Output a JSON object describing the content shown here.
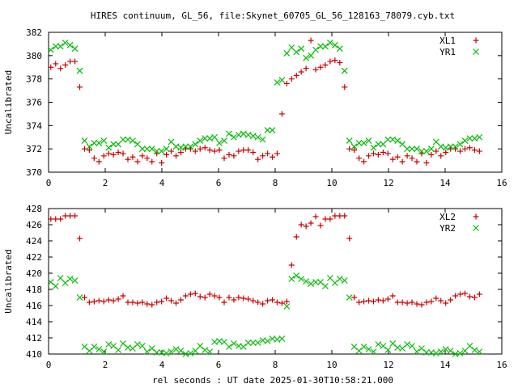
{
  "page_title": "HIRES continuum, GL_56, file:Skynet_60705_GL_56_128163_78079.cyb.txt",
  "xlabel": "rel seconds : UT date 2025-01-30T10:58:21.000",
  "colors": {
    "plus_series": "#cc0000",
    "x_series": "#00bb00",
    "axis": "#000000"
  },
  "chart_data": [
    {
      "type": "scatter",
      "ylabel": "Uncalibrated",
      "xlim": [
        0,
        16
      ],
      "ylim": [
        370,
        382
      ],
      "xticks": [
        0,
        2,
        4,
        6,
        8,
        10,
        12,
        14,
        16
      ],
      "yticks": [
        370,
        372,
        374,
        376,
        378,
        380,
        382
      ],
      "legend_position": "top-right",
      "series": [
        {
          "name": "XL1",
          "marker": "plus",
          "x": [
            0.08,
            0.25,
            0.42,
            0.59,
            0.76,
            0.93,
            1.1,
            1.27,
            1.44,
            1.61,
            1.78,
            1.95,
            2.12,
            2.29,
            2.46,
            2.63,
            2.8,
            2.97,
            3.14,
            3.31,
            3.48,
            3.65,
            3.82,
            3.99,
            4.16,
            4.33,
            4.5,
            4.67,
            4.84,
            5.01,
            5.18,
            5.35,
            5.52,
            5.69,
            5.86,
            6.03,
            6.2,
            6.37,
            6.54,
            6.71,
            6.88,
            7.05,
            7.22,
            7.39,
            7.56,
            7.73,
            7.9,
            8.07,
            8.24,
            8.41,
            8.58,
            8.75,
            8.92,
            9.09,
            9.26,
            9.43,
            9.6,
            9.77,
            9.94,
            10.11,
            10.28,
            10.45,
            10.62,
            10.79,
            10.96,
            11.13,
            11.3,
            11.47,
            11.64,
            11.81,
            11.98,
            12.15,
            12.32,
            12.49,
            12.66,
            12.83,
            13.0,
            13.17,
            13.34,
            13.51,
            13.68,
            13.85,
            14.02,
            14.19,
            14.36,
            14.53,
            14.7,
            14.87,
            15.04,
            15.21
          ],
          "y": [
            379.0,
            379.3,
            378.9,
            379.2,
            379.5,
            379.5,
            377.3,
            372.0,
            371.9,
            371.2,
            370.9,
            371.4,
            371.6,
            371.5,
            371.7,
            371.6,
            371.1,
            371.3,
            370.9,
            371.4,
            371.2,
            370.9,
            371.6,
            370.8,
            371.5,
            371.8,
            371.4,
            371.7,
            372.0,
            372.0,
            371.8,
            372.0,
            372.1,
            371.9,
            371.8,
            371.9,
            371.2,
            371.5,
            371.4,
            371.8,
            371.9,
            371.9,
            371.7,
            371.1,
            371.4,
            371.6,
            371.3,
            371.6,
            375.0,
            377.6,
            378.0,
            378.3,
            378.6,
            378.9,
            381.3,
            378.8,
            379.0,
            379.2,
            379.5,
            379.6,
            379.4,
            377.3,
            372.0,
            371.9,
            371.2,
            370.9,
            371.4,
            371.6,
            371.5,
            371.7,
            371.6,
            371.1,
            371.3,
            370.9,
            371.4,
            371.2,
            370.9,
            371.6,
            370.8,
            371.5,
            371.8,
            371.4,
            371.7,
            372.0,
            372.0,
            371.8,
            372.0,
            372.1,
            371.9,
            371.8
          ]
        },
        {
          "name": "YR1",
          "marker": "cross",
          "x": [
            0.08,
            0.25,
            0.42,
            0.59,
            0.76,
            0.93,
            1.1,
            1.27,
            1.44,
            1.61,
            1.78,
            1.95,
            2.12,
            2.29,
            2.46,
            2.63,
            2.8,
            2.97,
            3.14,
            3.31,
            3.48,
            3.65,
            3.82,
            3.99,
            4.16,
            4.33,
            4.5,
            4.67,
            4.84,
            5.01,
            5.18,
            5.35,
            5.52,
            5.69,
            5.86,
            6.03,
            6.2,
            6.37,
            6.54,
            6.71,
            6.88,
            7.05,
            7.22,
            7.39,
            7.56,
            7.73,
            7.9,
            8.07,
            8.24,
            8.41,
            8.58,
            8.75,
            8.92,
            9.09,
            9.26,
            9.43,
            9.6,
            9.77,
            9.94,
            10.11,
            10.28,
            10.45,
            10.62,
            10.79,
            10.96,
            11.13,
            11.3,
            11.47,
            11.64,
            11.81,
            11.98,
            12.15,
            12.32,
            12.49,
            12.66,
            12.83,
            13.0,
            13.17,
            13.34,
            13.51,
            13.68,
            13.85,
            14.02,
            14.19,
            14.36,
            14.53,
            14.7,
            14.87,
            15.04,
            15.21
          ],
          "y": [
            380.5,
            380.8,
            380.8,
            381.1,
            380.9,
            380.6,
            378.7,
            372.7,
            372.2,
            372.5,
            372.5,
            372.7,
            372.1,
            372.4,
            372.4,
            372.8,
            372.8,
            372.7,
            372.4,
            372.0,
            372.0,
            372.0,
            371.8,
            371.8,
            372.0,
            372.6,
            372.2,
            372.1,
            372.2,
            372.2,
            372.4,
            372.7,
            372.9,
            372.9,
            373.0,
            372.5,
            372.7,
            373.3,
            373.0,
            373.2,
            373.3,
            373.2,
            373.1,
            373.0,
            372.8,
            373.6,
            373.6,
            377.7,
            377.9,
            380.2,
            380.7,
            380.3,
            380.6,
            379.8,
            380.0,
            380.5,
            380.8,
            380.8,
            381.1,
            380.9,
            380.6,
            378.7,
            372.7,
            372.2,
            372.5,
            372.5,
            372.7,
            372.1,
            372.4,
            372.4,
            372.8,
            372.8,
            372.7,
            372.4,
            372.0,
            372.0,
            372.0,
            371.8,
            371.8,
            372.0,
            372.6,
            372.2,
            372.1,
            372.2,
            372.2,
            372.4,
            372.7,
            372.9,
            372.9,
            373.0
          ]
        }
      ]
    },
    {
      "type": "scatter",
      "ylabel": "Uncalibrated",
      "xlim": [
        0,
        16
      ],
      "ylim": [
        410,
        428
      ],
      "xticks": [
        0,
        2,
        4,
        6,
        8,
        10,
        12,
        14,
        16
      ],
      "yticks": [
        410,
        412,
        414,
        416,
        418,
        420,
        422,
        424,
        426,
        428
      ],
      "legend_position": "top-right",
      "series": [
        {
          "name": "XL2",
          "marker": "plus",
          "x": [
            0.08,
            0.25,
            0.42,
            0.59,
            0.76,
            0.93,
            1.1,
            1.27,
            1.44,
            1.61,
            1.78,
            1.95,
            2.12,
            2.29,
            2.46,
            2.63,
            2.8,
            2.97,
            3.14,
            3.31,
            3.48,
            3.65,
            3.82,
            3.99,
            4.16,
            4.33,
            4.5,
            4.67,
            4.84,
            5.01,
            5.18,
            5.35,
            5.52,
            5.69,
            5.86,
            6.03,
            6.2,
            6.37,
            6.54,
            6.71,
            6.88,
            7.05,
            7.22,
            7.39,
            7.56,
            7.73,
            7.9,
            8.07,
            8.24,
            8.41,
            8.58,
            8.75,
            8.92,
            9.09,
            9.26,
            9.43,
            9.6,
            9.77,
            9.94,
            10.11,
            10.28,
            10.45,
            10.62,
            10.79,
            10.96,
            11.13,
            11.3,
            11.47,
            11.64,
            11.81,
            11.98,
            12.15,
            12.32,
            12.49,
            12.66,
            12.83,
            13.0,
            13.17,
            13.34,
            13.51,
            13.68,
            13.85,
            14.02,
            14.19,
            14.36,
            14.53,
            14.7,
            14.87,
            15.04,
            15.21
          ],
          "y": [
            426.7,
            426.7,
            426.7,
            427.1,
            427.1,
            427.1,
            424.3,
            417.0,
            416.4,
            416.5,
            416.6,
            416.5,
            416.7,
            416.6,
            416.8,
            417.2,
            416.4,
            416.4,
            416.3,
            416.4,
            416.2,
            416.1,
            416.4,
            416.5,
            416.9,
            416.6,
            416.3,
            416.7,
            417.2,
            417.4,
            417.5,
            417.1,
            417.0,
            417.4,
            417.2,
            417.0,
            416.4,
            417.0,
            416.7,
            417.0,
            416.9,
            416.8,
            416.6,
            416.4,
            416.2,
            416.6,
            416.7,
            416.4,
            416.3,
            416.5,
            421.0,
            424.5,
            426.0,
            425.8,
            426.2,
            427.0,
            425.9,
            426.7,
            426.7,
            427.1,
            427.1,
            427.1,
            424.3,
            417.0,
            416.4,
            416.5,
            416.6,
            416.5,
            416.7,
            416.6,
            416.8,
            417.2,
            416.4,
            416.4,
            416.3,
            416.4,
            416.2,
            416.1,
            416.4,
            416.5,
            416.9,
            416.6,
            416.3,
            416.7,
            417.2,
            417.4,
            417.5,
            417.1,
            417.0,
            417.4
          ]
        },
        {
          "name": "YR2",
          "marker": "cross",
          "x": [
            0.08,
            0.25,
            0.42,
            0.59,
            0.76,
            0.93,
            1.1,
            1.27,
            1.44,
            1.61,
            1.78,
            1.95,
            2.12,
            2.29,
            2.46,
            2.63,
            2.8,
            2.97,
            3.14,
            3.31,
            3.48,
            3.65,
            3.82,
            3.99,
            4.16,
            4.33,
            4.5,
            4.67,
            4.84,
            5.01,
            5.18,
            5.35,
            5.52,
            5.69,
            5.86,
            6.03,
            6.2,
            6.37,
            6.54,
            6.71,
            6.88,
            7.05,
            7.22,
            7.39,
            7.56,
            7.73,
            7.9,
            8.07,
            8.24,
            8.41,
            8.58,
            8.75,
            8.92,
            9.09,
            9.26,
            9.43,
            9.6,
            9.77,
            9.94,
            10.11,
            10.28,
            10.45,
            10.62,
            10.79,
            10.96,
            11.13,
            11.3,
            11.47,
            11.64,
            11.81,
            11.98,
            12.15,
            12.32,
            12.49,
            12.66,
            12.83,
            13.0,
            13.17,
            13.34,
            13.51,
            13.68,
            13.85,
            14.02,
            14.19,
            14.36,
            14.53,
            14.7,
            14.87,
            15.04,
            15.21
          ],
          "y": [
            418.9,
            418.4,
            419.4,
            418.8,
            419.3,
            419.1,
            417.0,
            410.9,
            410.4,
            410.9,
            410.6,
            410.3,
            411.2,
            411.0,
            410.5,
            411.3,
            410.8,
            410.7,
            411.2,
            411.0,
            410.3,
            410.7,
            410.2,
            410.2,
            410.1,
            410.3,
            410.6,
            410.4,
            410.0,
            410.1,
            410.4,
            411.0,
            410.5,
            410.3,
            411.5,
            411.6,
            411.5,
            410.9,
            411.3,
            411.0,
            410.9,
            411.4,
            411.4,
            411.4,
            411.7,
            411.6,
            411.9,
            411.8,
            411.9,
            415.9,
            419.3,
            419.7,
            419.3,
            419.0,
            418.7,
            418.9,
            418.9,
            418.4,
            419.4,
            418.8,
            419.3,
            419.1,
            417.0,
            410.9,
            410.4,
            410.9,
            410.6,
            410.3,
            411.2,
            411.0,
            410.5,
            411.3,
            410.8,
            410.7,
            411.2,
            411.0,
            410.3,
            410.7,
            410.2,
            410.2,
            410.1,
            410.3,
            410.6,
            410.4,
            410.0,
            410.1,
            410.4,
            411.0,
            410.5,
            410.3
          ]
        }
      ]
    }
  ]
}
